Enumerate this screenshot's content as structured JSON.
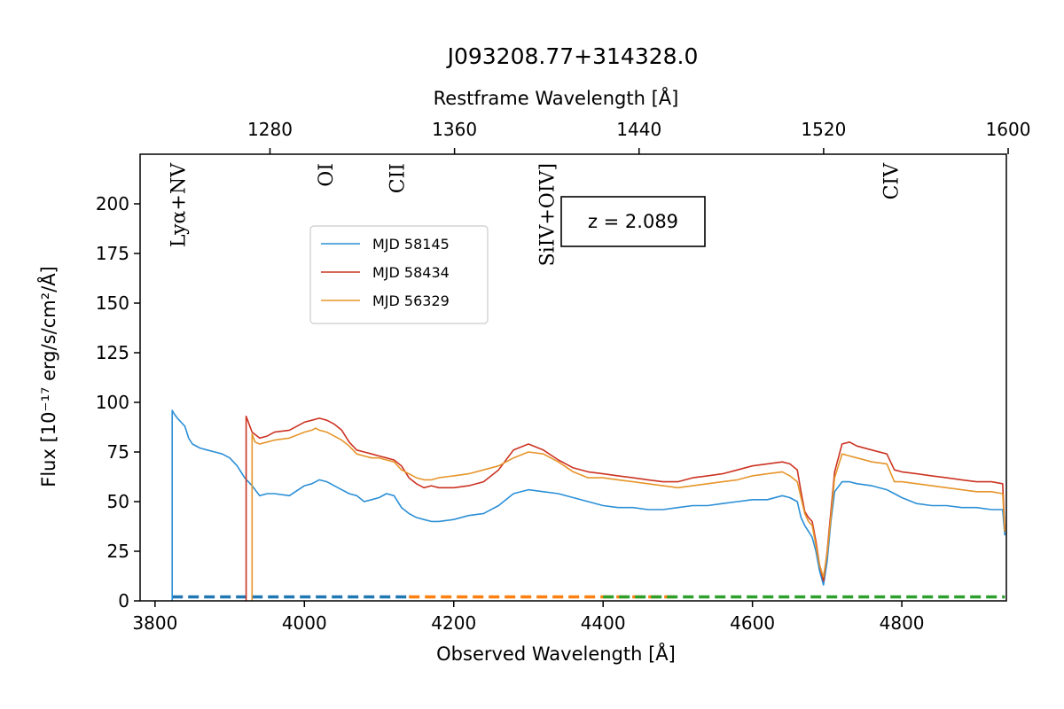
{
  "chart_data": {
    "type": "line",
    "title": "J093208.77+314328.0",
    "xlabel": "Observed Wavelength [Å]",
    "ylabel": "Flux [10⁻¹⁷ erg/s/cm²/Å]",
    "top_xlabel": "Restframe Wavelength [Å]",
    "xlim": [
      3780,
      4940
    ],
    "ylim": [
      0,
      225
    ],
    "redshift": 2.089,
    "x_ticks": [
      3800,
      4000,
      4200,
      4400,
      4600,
      4800
    ],
    "y_ticks": [
      0,
      25,
      50,
      75,
      100,
      125,
      150,
      175,
      200
    ],
    "top_ticks": [
      1280,
      1360,
      1440,
      1520,
      1600
    ],
    "annotation": "z = 2.089",
    "legend_position": "upper-left-center",
    "line_labels": [
      {
        "text": "Lyα+NV",
        "rest": 1240
      },
      {
        "text": "OI",
        "rest": 1304
      },
      {
        "text": "CII",
        "rest": 1335
      },
      {
        "text": "SiIV+OIV]",
        "rest": 1400
      },
      {
        "text": "CIV",
        "rest": 1549
      }
    ],
    "series": [
      {
        "name": "MJD 58145",
        "color": "#2b8fd6",
        "x": [
          3823,
          3826,
          3830,
          3835,
          3840,
          3845,
          3850,
          3860,
          3870,
          3880,
          3890,
          3900,
          3910,
          3920,
          3930,
          3940,
          3950,
          3960,
          3980,
          4000,
          4010,
          4020,
          4030,
          4040,
          4050,
          4060,
          4070,
          4080,
          4090,
          4100,
          4110,
          4120,
          4130,
          4140,
          4150,
          4160,
          4170,
          4180,
          4200,
          4220,
          4240,
          4260,
          4280,
          4300,
          4320,
          4340,
          4360,
          4380,
          4400,
          4420,
          4440,
          4460,
          4480,
          4500,
          4520,
          4540,
          4560,
          4580,
          4600,
          4620,
          4640,
          4650,
          4660,
          4665,
          4670,
          4675,
          4680,
          4685,
          4690,
          4695,
          4700,
          4705,
          4710,
          4720,
          4730,
          4740,
          4760,
          4780,
          4790,
          4800,
          4820,
          4840,
          4860,
          4880,
          4900,
          4920,
          4935,
          4938
        ],
        "y": [
          96,
          94,
          92,
          90,
          88,
          82,
          79,
          77,
          76,
          75,
          74,
          72,
          68,
          62,
          58,
          53,
          54,
          54,
          53,
          58,
          59,
          61,
          60,
          58,
          56,
          54,
          53,
          50,
          51,
          52,
          54,
          53,
          47,
          44,
          42,
          41,
          40,
          40,
          41,
          43,
          44,
          48,
          54,
          56,
          55,
          54,
          52,
          50,
          48,
          47,
          47,
          46,
          46,
          47,
          48,
          48,
          49,
          50,
          51,
          51,
          53,
          52,
          50,
          42,
          38,
          35,
          32,
          25,
          15,
          8,
          20,
          40,
          55,
          60,
          60,
          59,
          58,
          56,
          54,
          52,
          49,
          48,
          48,
          47,
          47,
          46,
          46,
          33
        ]
      },
      {
        "name": "MJD 58434",
        "color": "#cc3322",
        "x": [
          3922,
          3925,
          3930,
          3940,
          3950,
          3960,
          3980,
          4000,
          4010,
          4020,
          4030,
          4040,
          4050,
          4060,
          4070,
          4080,
          4090,
          4100,
          4110,
          4120,
          4130,
          4140,
          4150,
          4160,
          4170,
          4180,
          4200,
          4220,
          4240,
          4260,
          4280,
          4300,
          4320,
          4340,
          4360,
          4380,
          4400,
          4420,
          4440,
          4460,
          4480,
          4500,
          4520,
          4540,
          4560,
          4580,
          4600,
          4620,
          4640,
          4650,
          4660,
          4665,
          4670,
          4675,
          4680,
          4685,
          4690,
          4695,
          4700,
          4705,
          4710,
          4720,
          4730,
          4740,
          4760,
          4780,
          4790,
          4800,
          4820,
          4840,
          4860,
          4880,
          4900,
          4920,
          4935,
          4938
        ],
        "y": [
          93,
          90,
          85,
          82,
          83,
          85,
          86,
          90,
          91,
          92,
          91,
          89,
          86,
          80,
          76,
          75,
          74,
          73,
          72,
          71,
          68,
          62,
          59,
          57,
          58,
          57,
          57,
          58,
          60,
          66,
          76,
          79,
          76,
          71,
          67,
          65,
          64,
          63,
          62,
          61,
          60,
          60,
          62,
          63,
          64,
          66,
          68,
          69,
          70,
          69,
          66,
          55,
          45,
          42,
          40,
          30,
          18,
          10,
          25,
          45,
          65,
          79,
          80,
          78,
          76,
          74,
          66,
          65,
          64,
          63,
          62,
          61,
          60,
          60,
          59,
          35
        ]
      },
      {
        "name": "MJD 56329",
        "color": "#e6952a",
        "x": [
          3930,
          3934,
          3940,
          3950,
          3960,
          3980,
          4000,
          4010,
          4015,
          4020,
          4030,
          4040,
          4050,
          4060,
          4070,
          4080,
          4090,
          4100,
          4110,
          4120,
          4130,
          4140,
          4150,
          4160,
          4170,
          4180,
          4200,
          4220,
          4240,
          4260,
          4280,
          4300,
          4320,
          4340,
          4360,
          4380,
          4400,
          4420,
          4440,
          4460,
          4480,
          4500,
          4520,
          4540,
          4560,
          4580,
          4600,
          4620,
          4640,
          4650,
          4660,
          4665,
          4670,
          4675,
          4680,
          4685,
          4690,
          4695,
          4700,
          4705,
          4710,
          4720,
          4730,
          4740,
          4760,
          4780,
          4790,
          4800,
          4820,
          4840,
          4860,
          4880,
          4900,
          4920,
          4935,
          4938
        ],
        "y": [
          84,
          80,
          79,
          80,
          81,
          82,
          85,
          86,
          87,
          86,
          85,
          83,
          81,
          78,
          74,
          73,
          72,
          72,
          71,
          70,
          66,
          64,
          62,
          61,
          61,
          62,
          63,
          64,
          66,
          68,
          72,
          75,
          74,
          70,
          65,
          62,
          62,
          61,
          60,
          59,
          58,
          57,
          58,
          59,
          60,
          61,
          63,
          64,
          65,
          63,
          60,
          52,
          44,
          40,
          38,
          28,
          18,
          12,
          24,
          42,
          62,
          74,
          73,
          72,
          70,
          69,
          60,
          60,
          59,
          58,
          57,
          56,
          55,
          55,
          54,
          35
        ]
      }
    ],
    "error_series": [
      {
        "color": "#1f77b4",
        "x": [
          3823,
          4140
        ],
        "y": [
          2,
          2
        ]
      },
      {
        "color": "#ff7f0e",
        "x": [
          4140,
          4500
        ],
        "y": [
          2,
          2
        ]
      },
      {
        "color": "#2ca02c",
        "x": [
          4400,
          4938
        ],
        "y": [
          2,
          2
        ]
      }
    ]
  }
}
